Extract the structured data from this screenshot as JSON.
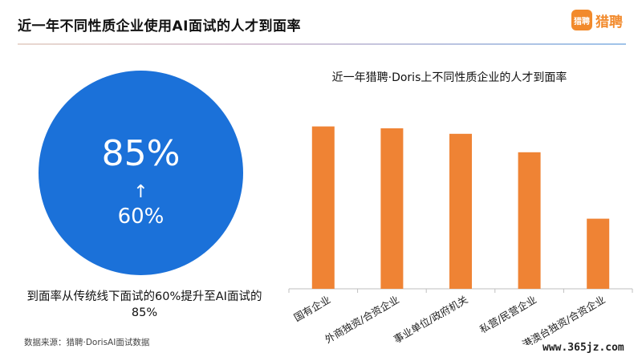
{
  "header": {
    "title": "近一年不同性质企业使用AI面试的人才到面率",
    "logo_mark": "猎聘",
    "logo_text": "猎聘"
  },
  "highlight": {
    "big_value": "85%",
    "arrow": "↑",
    "small_value": "60%",
    "caption": "到面率从传统线下面试的60%提升至AI面试的85%"
  },
  "source": "数据来源：猎聘·DorisAI面试数据",
  "watermark": "www.365jz.com",
  "chart_data": {
    "type": "bar",
    "title": "近一年猎聘·Doris上不同性质企业的人才到面率",
    "categories": [
      "国有企业",
      "外商独资/合资企业",
      "事业单位/政府机关",
      "私营/民营企业",
      "港澳台独资/合资企业"
    ],
    "values": [
      0.88,
      0.87,
      0.84,
      0.74,
      0.38
    ],
    "ylim": [
      0,
      1
    ],
    "grid": false,
    "bar_color": "#ef8334",
    "axis_color": "#bfbfbf"
  }
}
